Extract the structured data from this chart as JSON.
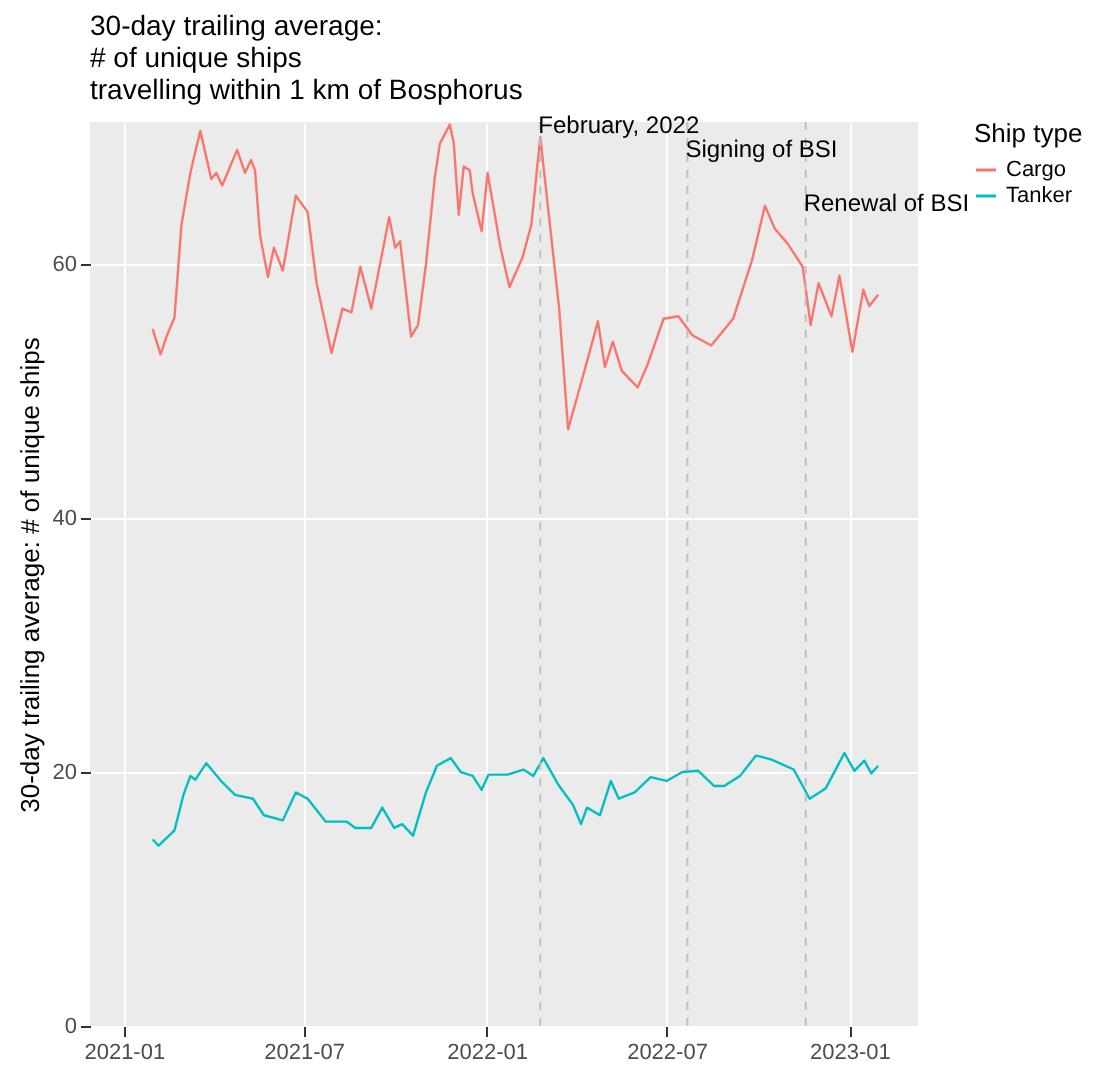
{
  "chart_data": {
    "type": "line",
    "title": "30-day trailing average:\n # of unique ships\n travelling within 1 km of Bosphorus",
    "ylabel": "30-day trailing average: # of unique ships",
    "legend_title": "Ship type",
    "legend": "right",
    "grid": true,
    "line_style": "solid",
    "xlim": [
      "2020-11-28",
      "2023-03-11"
    ],
    "xticks": [
      "2021-01",
      "2021-07",
      "2022-01",
      "2022-07",
      "2023-01"
    ],
    "ylim": [
      0,
      71.2
    ],
    "yticks": [
      0,
      20,
      40,
      60
    ],
    "series": [
      {
        "name": "Cargo",
        "color": "#f8766d",
        "x": [
          "2021-01-30",
          "2021-02-07",
          "2021-02-13",
          "2021-02-21",
          "2021-02-28",
          "2021-03-09",
          "2021-03-19",
          "2021-03-30",
          "2021-04-04",
          "2021-04-10",
          "2021-04-25",
          "2021-05-03",
          "2021-05-09",
          "2021-05-13",
          "2021-05-18",
          "2021-05-26",
          "2021-06-01",
          "2021-06-10",
          "2021-06-23",
          "2021-07-05",
          "2021-07-14",
          "2021-07-29",
          "2021-08-09",
          "2021-08-18",
          "2021-08-27",
          "2021-09-07",
          "2021-09-25",
          "2021-10-01",
          "2021-10-06",
          "2021-10-17",
          "2021-10-24",
          "2021-11-01",
          "2021-11-10",
          "2021-11-15",
          "2021-11-25",
          "2021-11-29",
          "2021-12-04",
          "2021-12-09",
          "2021-12-15",
          "2021-12-18",
          "2021-12-27",
          "2022-01-02",
          "2022-01-15",
          "2022-01-24",
          "2022-02-06",
          "2022-02-15",
          "2022-02-24",
          "2022-03-15",
          "2022-03-24",
          "2022-04-03",
          "2022-04-14",
          "2022-04-23",
          "2022-04-30",
          "2022-05-08",
          "2022-05-17",
          "2022-06-02",
          "2022-06-12",
          "2022-06-28",
          "2022-07-13",
          "2022-07-27",
          "2022-08-15",
          "2022-09-06",
          "2022-09-25",
          "2022-10-08",
          "2022-10-18",
          "2022-10-31",
          "2022-11-15",
          "2022-11-23",
          "2022-12-01",
          "2022-12-14",
          "2022-12-22",
          "2023-01-04",
          "2023-01-15",
          "2023-01-21",
          "2023-01-30"
        ],
        "values": [
          54.9,
          52.9,
          54.3,
          55.8,
          63.1,
          67.2,
          70.5,
          66.7,
          67.2,
          66.2,
          69.0,
          67.2,
          68.2,
          67.4,
          62.3,
          59.0,
          61.3,
          59.5,
          65.4,
          64.1,
          58.5,
          53.0,
          56.5,
          56.2,
          59.8,
          56.5,
          63.7,
          61.3,
          61.8,
          54.3,
          55.2,
          60.0,
          66.9,
          69.5,
          71.0,
          69.5,
          63.9,
          67.7,
          67.4,
          65.6,
          62.6,
          67.2,
          61.3,
          58.2,
          60.5,
          63.1,
          70.0,
          56.5,
          47.0,
          49.8,
          52.9,
          55.5,
          51.9,
          53.9,
          51.6,
          50.3,
          52.1,
          55.7,
          55.9,
          54.4,
          53.6,
          55.7,
          60.3,
          64.6,
          62.8,
          61.6,
          59.8,
          55.2,
          58.5,
          55.9,
          59.1,
          53.1,
          58.0,
          56.7,
          57.6
        ]
      },
      {
        "name": "Tanker",
        "color": "#00bfc4",
        "x": [
          "2021-01-30",
          "2021-02-05",
          "2021-02-21",
          "2021-03-02",
          "2021-03-09",
          "2021-03-14",
          "2021-03-25",
          "2021-04-10",
          "2021-04-23",
          "2021-05-11",
          "2021-05-22",
          "2021-06-10",
          "2021-06-23",
          "2021-07-05",
          "2021-07-23",
          "2021-08-13",
          "2021-08-22",
          "2021-09-07",
          "2021-09-18",
          "2021-09-30",
          "2021-10-08",
          "2021-10-19",
          "2021-11-01",
          "2021-11-12",
          "2021-11-26",
          "2021-12-06",
          "2021-12-18",
          "2021-12-27",
          "2022-01-03",
          "2022-01-22",
          "2022-02-07",
          "2022-02-17",
          "2022-02-27",
          "2022-03-15",
          "2022-03-29",
          "2022-04-06",
          "2022-04-12",
          "2022-04-25",
          "2022-05-06",
          "2022-05-14",
          "2022-05-30",
          "2022-06-15",
          "2022-07-01",
          "2022-07-17",
          "2022-08-02",
          "2022-08-18",
          "2022-08-28",
          "2022-09-13",
          "2022-09-29",
          "2022-10-14",
          "2022-11-06",
          "2022-11-22",
          "2022-12-08",
          "2022-12-27",
          "2023-01-06",
          "2023-01-16",
          "2023-01-23",
          "2023-01-30"
        ],
        "values": [
          14.7,
          14.2,
          15.4,
          18.2,
          19.7,
          19.4,
          20.7,
          19.2,
          18.2,
          17.9,
          16.6,
          16.2,
          18.4,
          17.9,
          16.1,
          16.1,
          15.6,
          15.6,
          17.2,
          15.6,
          15.9,
          15.0,
          18.4,
          20.5,
          21.1,
          20.0,
          19.7,
          18.6,
          19.8,
          19.8,
          20.2,
          19.7,
          21.1,
          18.9,
          17.4,
          15.9,
          17.2,
          16.6,
          19.3,
          17.9,
          18.4,
          19.6,
          19.3,
          20.0,
          20.1,
          18.9,
          18.9,
          19.7,
          21.3,
          21.0,
          20.2,
          17.9,
          18.7,
          21.5,
          20.1,
          20.9,
          19.9,
          20.5
        ]
      }
    ],
    "ref_lines": [
      {
        "axis": "x",
        "value": "2022-02-24",
        "color": "#bebebe",
        "line_style": "dashed"
      },
      {
        "axis": "x",
        "value": "2022-07-22",
        "color": "#bebebe",
        "line_style": "dashed"
      },
      {
        "axis": "x",
        "value": "2022-11-18",
        "color": "#bebebe",
        "line_style": "dashed"
      }
    ],
    "annotations": [
      {
        "text": "February, 2022",
        "x": "2022-02-24",
        "y": 71.0
      },
      {
        "text": "Signing of BSI",
        "x": "2022-07-22",
        "y": 69.1
      },
      {
        "text": "Renewal of BSI",
        "x": "2022-11-18",
        "y": 64.8
      }
    ]
  }
}
